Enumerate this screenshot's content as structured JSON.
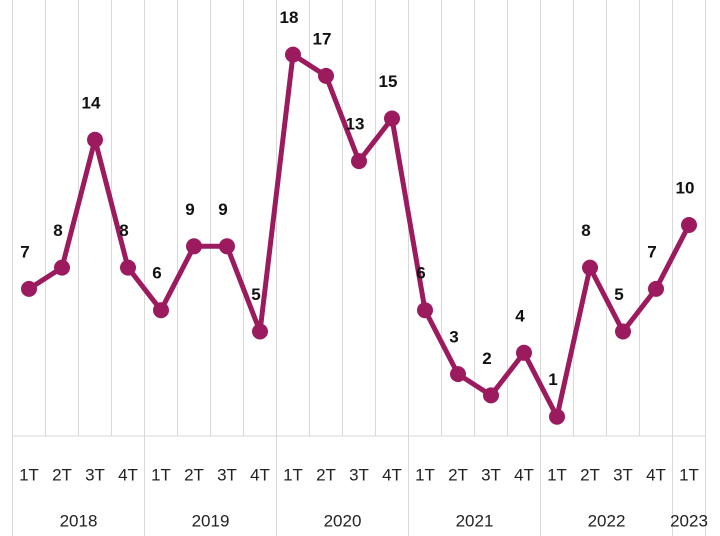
{
  "chart_data": {
    "type": "line",
    "categories": [
      "1T",
      "2T",
      "3T",
      "4T",
      "1T",
      "2T",
      "3T",
      "4T",
      "1T",
      "2T",
      "3T",
      "4T",
      "1T",
      "2T",
      "3T",
      "4T",
      "1T",
      "2T",
      "3T",
      "4T",
      "1T"
    ],
    "groups": [
      {
        "label": "2018",
        "span": 4
      },
      {
        "label": "2019",
        "span": 4
      },
      {
        "label": "2020",
        "span": 4
      },
      {
        "label": "2021",
        "span": 4
      },
      {
        "label": "2022",
        "span": 4
      },
      {
        "label": "2023",
        "span": 1
      }
    ],
    "series": [
      {
        "color": "#9b1b5e",
        "values": [
          7,
          8,
          14,
          8,
          6,
          9,
          9,
          5,
          18,
          17,
          13,
          15,
          6,
          3,
          2,
          4,
          1,
          8,
          5,
          7,
          10
        ]
      }
    ],
    "grid": true
  }
}
